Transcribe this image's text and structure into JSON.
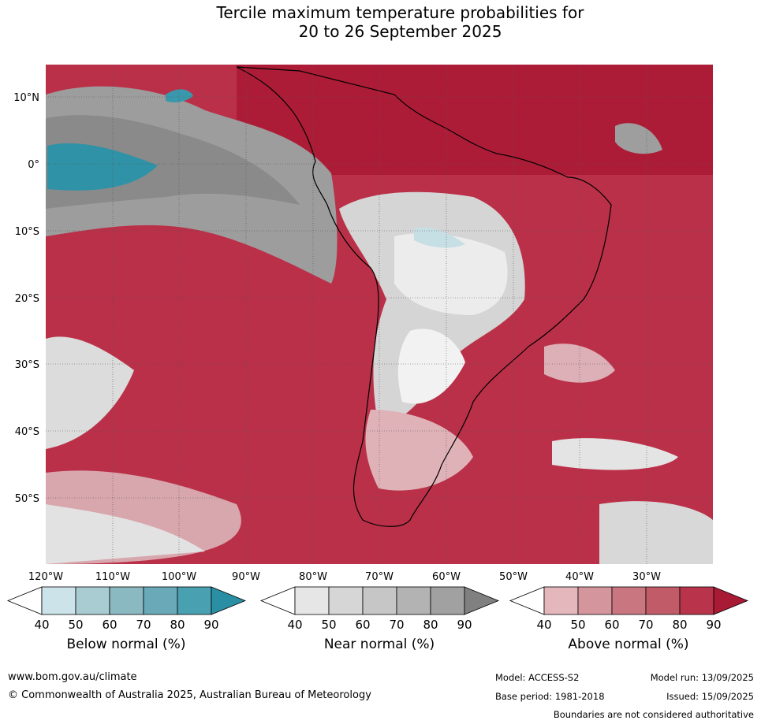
{
  "title_line1": "Tercile maximum temperature probabilities for",
  "title_line2": "20 to 26 September 2025",
  "map": {
    "lat_labels": [
      "10°N",
      "0°",
      "10°S",
      "20°S",
      "30°S",
      "40°S",
      "50°S"
    ],
    "lon_labels": [
      "120°W",
      "110°W",
      "100°W",
      "90°W",
      "80°W",
      "70°W",
      "60°W",
      "50°W",
      "40°W",
      "30°W"
    ],
    "region": "South America"
  },
  "legends": [
    {
      "title": "Below normal (%)",
      "ticks": [
        "40",
        "50",
        "60",
        "70",
        "80",
        "90"
      ],
      "colors": [
        "#ffffff",
        "#cce3e9",
        "#a9cbd2",
        "#8ab9c2",
        "#6aaab8",
        "#48a0b1",
        "#2b8fa3"
      ]
    },
    {
      "title": "Near normal (%)",
      "ticks": [
        "40",
        "50",
        "60",
        "70",
        "80",
        "90"
      ],
      "colors": [
        "#ffffff",
        "#e6e6e6",
        "#d6d6d6",
        "#c6c6c6",
        "#b3b3b3",
        "#a1a1a1",
        "#808080"
      ]
    },
    {
      "title": "Above normal (%)",
      "ticks": [
        "40",
        "50",
        "60",
        "70",
        "80",
        "90"
      ],
      "colors": [
        "#ffffff",
        "#e4b7bc",
        "#d5959d",
        "#c97680",
        "#c05b67",
        "#b9344a",
        "#a91a35"
      ]
    }
  ],
  "footer": {
    "website": "www.bom.gov.au/climate",
    "copyright": "© Commonwealth of Australia 2025, Australian Bureau of Meteorology",
    "model": "Model: ACCESS-S2",
    "model_run": "Model run: 13/09/2025",
    "base_period": "Base period: 1981-2018",
    "issued": "Issued: 15/09/2025",
    "disclaimer": "Boundaries are not considered authoritative"
  }
}
